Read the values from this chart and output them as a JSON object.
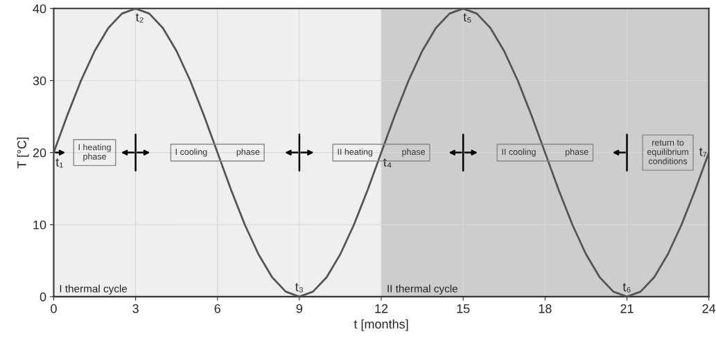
{
  "chart_data": {
    "type": "line",
    "xlabel": "t [months]",
    "ylabel": "T [°C]",
    "xlim": [
      0,
      24
    ],
    "xticks": [
      0,
      3,
      6,
      9,
      12,
      15,
      18,
      21,
      24
    ],
    "ylim": [
      0,
      40
    ],
    "yticks": [
      0,
      10,
      20,
      30,
      40
    ],
    "grid": true,
    "x": [
      0,
      0.5,
      1,
      1.5,
      2,
      2.5,
      3,
      3.5,
      4,
      4.5,
      5,
      5.5,
      6,
      6.5,
      7,
      7.5,
      8,
      8.5,
      9,
      9.5,
      10,
      10.5,
      11,
      11.5,
      12,
      12.5,
      13,
      13.5,
      14,
      14.5,
      15,
      15.5,
      16,
      16.5,
      17,
      17.5,
      18,
      18.5,
      19,
      19.5,
      20,
      20.5,
      21,
      21.5,
      22,
      22.5,
      23,
      23.5,
      24
    ],
    "series": [
      {
        "color": "#555555",
        "values": [
          20,
          25.2,
          30,
          34.1,
          37.3,
          39.3,
          40,
          39.3,
          37.3,
          34.1,
          30,
          25.2,
          20,
          14.8,
          10,
          5.9,
          2.7,
          0.7,
          0,
          0.7,
          2.7,
          5.9,
          10,
          14.8,
          20,
          25.2,
          30,
          34.1,
          37.3,
          39.3,
          40,
          39.3,
          37.3,
          34.1,
          30,
          25.2,
          20,
          14.8,
          10,
          5.9,
          2.7,
          0.7,
          0,
          0.7,
          2.7,
          5.9,
          10,
          14.8,
          20
        ]
      }
    ],
    "bands": [
      {
        "axis": "x",
        "from": 0,
        "to": 12,
        "label": "I thermal cycle",
        "color": "#efefef"
      },
      {
        "axis": "x",
        "from": 12,
        "to": 24,
        "label": "II thermal cycle",
        "color": "#cdcdcd"
      }
    ],
    "annotations": [
      {
        "text": "t₁",
        "x": 0,
        "y": 20
      },
      {
        "text": "t₂",
        "x": 3,
        "y": 40
      },
      {
        "text": "t₃",
        "x": 9,
        "y": 0
      },
      {
        "text": "t₄",
        "x": 12,
        "y": 20
      },
      {
        "text": "t₅",
        "x": 15,
        "y": 40
      },
      {
        "text": "t₆",
        "x": 21,
        "y": 0
      },
      {
        "text": "t₇",
        "x": 24,
        "y": 20
      },
      "I heating\nphase",
      "I cooling            phase",
      "II heating            phase",
      "II cooling            phase",
      "return to\nequilibrium\nconditions"
    ]
  }
}
